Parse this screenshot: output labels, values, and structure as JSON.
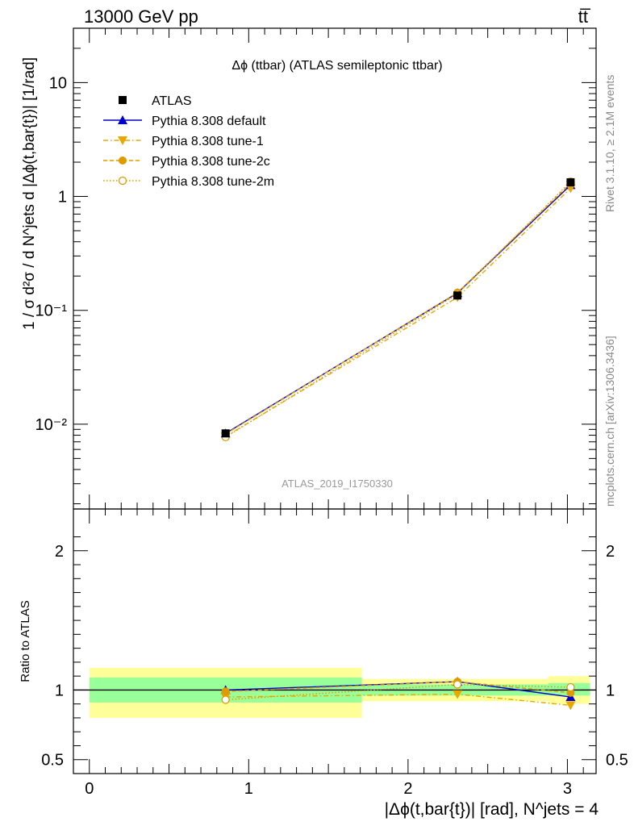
{
  "header": {
    "energy_label": "13000 GeV pp",
    "process_label": "tt̅"
  },
  "side_labels": {
    "rivet": "Rivet 3.1.10, ≥ 2.1M events",
    "mcplots": "mcplots.cern.ch [arXiv:1306.3436]"
  },
  "chart_data": [
    {
      "type": "line",
      "panel": "main",
      "title": "Δϕ (ttbar) (ATLAS semileptonic ttbar)",
      "ylabel": "1 / σ d²σ / d N^jets d |Δϕ(t,bar{t})| [1/rad]",
      "yscale": "log",
      "ylim": [
        0.0018,
        30
      ],
      "xlim": [
        -0.1,
        3.18
      ],
      "yticks": [
        {
          "value": 10,
          "label": "10"
        },
        {
          "value": 1,
          "label": "1"
        },
        {
          "value": 0.1,
          "label": "10⁻¹"
        },
        {
          "value": 0.01,
          "label": "10⁻²"
        }
      ],
      "watermark": "ATLAS_2019_I1750330",
      "legend_position": "top-left",
      "x": [
        0.855,
        2.31,
        3.02
      ],
      "series": [
        {
          "name": "ATLAS",
          "marker": "square",
          "color": "#000000",
          "values": [
            0.0083,
            0.135,
            1.33
          ]
        },
        {
          "name": "Pythia 8.308 default",
          "marker": "triangle-up",
          "line": "solid",
          "color": "#0000cc",
          "values": [
            0.0083,
            0.142,
            1.26
          ]
        },
        {
          "name": "Pythia 8.308 tune-1",
          "marker": "triangle-down",
          "line": "dashdot",
          "color": "#e8a800",
          "values": [
            0.0078,
            0.13,
            1.18
          ]
        },
        {
          "name": "Pythia 8.308 tune-2c",
          "marker": "circle-filled",
          "line": "dashed",
          "color": "#e09a00",
          "values": [
            0.0082,
            0.143,
            1.3
          ]
        },
        {
          "name": "Pythia 8.308 tune-2m",
          "marker": "circle-open",
          "line": "dotted",
          "color": "#e09a00",
          "values": [
            0.0077,
            0.139,
            1.35
          ]
        }
      ]
    },
    {
      "type": "line",
      "panel": "ratio",
      "ylabel": "Ratio to ATLAS",
      "xlabel": "|Δϕ(t,bar{t})| [rad], N^jets = 4",
      "ylim": [
        0.4,
        2.3
      ],
      "xlim": [
        -0.1,
        3.18
      ],
      "yticks": [
        {
          "value": 2,
          "label": "2"
        },
        {
          "value": 1,
          "label": "1"
        },
        {
          "value": 0.5,
          "label": "0.5"
        }
      ],
      "xticks": [
        {
          "value": 0,
          "label": "0"
        },
        {
          "value": 1,
          "label": "1"
        },
        {
          "value": 2,
          "label": "2"
        },
        {
          "value": 3,
          "label": "3"
        }
      ],
      "bins": [
        {
          "lo": 0.0,
          "hi": 1.71,
          "stat_lo": 0.91,
          "stat_hi": 1.09,
          "tot_lo": 0.8,
          "tot_hi": 1.16
        },
        {
          "lo": 1.71,
          "hi": 2.88,
          "stat_lo": 0.96,
          "stat_hi": 1.04,
          "tot_lo": 0.92,
          "tot_hi": 1.08
        },
        {
          "lo": 2.88,
          "hi": 3.1416,
          "stat_lo": 0.96,
          "stat_hi": 1.05,
          "tot_lo": 0.9,
          "tot_hi": 1.1
        }
      ],
      "x": [
        0.855,
        2.31,
        3.02
      ],
      "series": [
        {
          "name": "Pythia 8.308 default",
          "values": [
            1.0,
            1.06,
            0.95
          ]
        },
        {
          "name": "Pythia 8.308 tune-1",
          "values": [
            0.95,
            0.97,
            0.89
          ]
        },
        {
          "name": "Pythia 8.308 tune-2c",
          "values": [
            0.99,
            1.06,
            0.98
          ]
        },
        {
          "name": "Pythia 8.308 tune-2m",
          "values": [
            0.93,
            1.04,
            1.02
          ]
        }
      ]
    }
  ]
}
